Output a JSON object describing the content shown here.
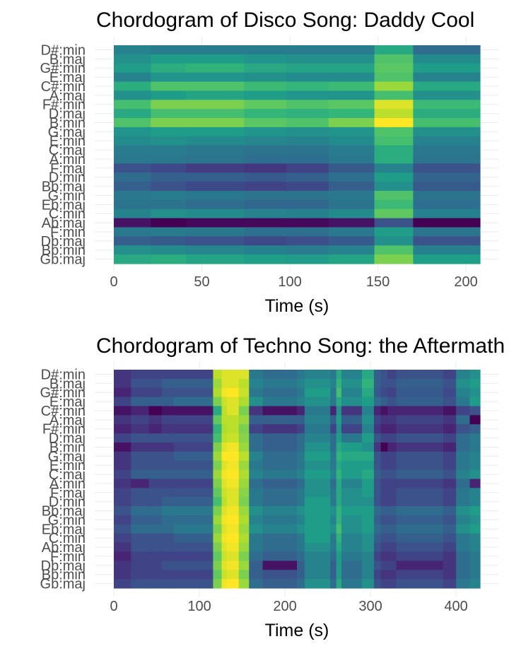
{
  "chart_data": [
    {
      "type": "heatmap",
      "title": "Chordogram of Disco Song: Daddy Cool",
      "xlabel": "Time (s)",
      "ylabel": "",
      "xlim": [
        0,
        208
      ],
      "xticks": [
        0,
        50,
        100,
        150,
        200
      ],
      "categories": [
        "D#:min",
        "B:maj",
        "G#:min",
        "E:maj",
        "C#:min",
        "A:maj",
        "F#:min",
        "D:maj",
        "B:min",
        "G:maj",
        "E:min",
        "C:maj",
        "A:min",
        "F:maj",
        "D:min",
        "Bb:maj",
        "G:min",
        "Eb:maj",
        "C:min",
        "Ab:maj",
        "F:min",
        "Db:maj",
        "Bb:min",
        "Gb:maj"
      ],
      "time_bins": [
        0,
        21,
        41,
        74,
        98,
        122,
        148,
        170,
        208
      ],
      "values": [
        [
          0.45,
          0.42,
          0.42,
          0.42,
          0.42,
          0.42,
          0.6,
          0.35
        ],
        [
          0.5,
          0.55,
          0.55,
          0.52,
          0.5,
          0.5,
          0.72,
          0.48
        ],
        [
          0.55,
          0.62,
          0.65,
          0.6,
          0.58,
          0.58,
          0.74,
          0.55
        ],
        [
          0.45,
          0.52,
          0.52,
          0.5,
          0.48,
          0.48,
          0.72,
          0.45
        ],
        [
          0.62,
          0.72,
          0.72,
          0.68,
          0.66,
          0.68,
          0.85,
          0.6
        ],
        [
          0.5,
          0.55,
          0.58,
          0.55,
          0.52,
          0.52,
          0.7,
          0.5
        ],
        [
          0.7,
          0.8,
          0.8,
          0.75,
          0.72,
          0.74,
          0.95,
          0.68
        ],
        [
          0.6,
          0.7,
          0.7,
          0.66,
          0.64,
          0.66,
          0.9,
          0.62
        ],
        [
          0.72,
          0.8,
          0.8,
          0.74,
          0.72,
          0.8,
          1.0,
          0.7
        ],
        [
          0.52,
          0.55,
          0.55,
          0.52,
          0.5,
          0.52,
          0.72,
          0.5
        ],
        [
          0.48,
          0.5,
          0.48,
          0.46,
          0.45,
          0.48,
          0.7,
          0.45
        ],
        [
          0.42,
          0.42,
          0.4,
          0.38,
          0.38,
          0.42,
          0.62,
          0.4
        ],
        [
          0.4,
          0.4,
          0.38,
          0.36,
          0.36,
          0.4,
          0.62,
          0.38
        ],
        [
          0.25,
          0.22,
          0.18,
          0.16,
          0.2,
          0.28,
          0.45,
          0.25
        ],
        [
          0.35,
          0.3,
          0.3,
          0.28,
          0.3,
          0.36,
          0.55,
          0.32
        ],
        [
          0.3,
          0.25,
          0.22,
          0.2,
          0.22,
          0.3,
          0.5,
          0.28
        ],
        [
          0.4,
          0.42,
          0.4,
          0.38,
          0.38,
          0.4,
          0.72,
          0.38
        ],
        [
          0.38,
          0.38,
          0.35,
          0.33,
          0.33,
          0.38,
          0.68,
          0.36
        ],
        [
          0.45,
          0.5,
          0.48,
          0.45,
          0.44,
          0.48,
          0.75,
          0.44
        ],
        [
          0.05,
          0.0,
          0.02,
          0.02,
          0.02,
          0.05,
          0.25,
          0.0
        ],
        [
          0.4,
          0.42,
          0.4,
          0.36,
          0.36,
          0.4,
          0.55,
          0.38
        ],
        [
          0.3,
          0.28,
          0.25,
          0.22,
          0.24,
          0.28,
          0.5,
          0.26
        ],
        [
          0.5,
          0.48,
          0.46,
          0.44,
          0.42,
          0.45,
          0.72,
          0.44
        ],
        [
          0.6,
          0.62,
          0.58,
          0.56,
          0.55,
          0.58,
          0.8,
          0.56
        ]
      ],
      "colormap": "viridis",
      "grid": true,
      "legend": "none"
    },
    {
      "type": "heatmap",
      "title": "Chordogram of Techno Song: the Aftermath",
      "xlabel": "Time (s)",
      "ylabel": "",
      "xlim": [
        0,
        428
      ],
      "xticks": [
        0,
        100,
        200,
        300,
        400
      ],
      "categories": [
        "D#:min",
        "B:maj",
        "G#:min",
        "E:maj",
        "C#:min",
        "A:maj",
        "F#:min",
        "D:maj",
        "B:min",
        "G:maj",
        "E:min",
        "C:maj",
        "A:min",
        "F:maj",
        "D:min",
        "Bb:maj",
        "G:min",
        "Eb:maj",
        "C:min",
        "Ab:maj",
        "F:min",
        "Db:maj",
        "Bb:min",
        "Gb:maj"
      ],
      "time_bins": [
        0,
        20,
        41,
        56,
        70,
        116,
        126,
        132,
        146,
        158,
        174,
        214,
        223,
        253,
        260,
        266,
        290,
        304,
        312,
        320,
        330,
        385,
        400,
        416,
        428
      ],
      "values": [
        [
          0.15,
          0.2,
          0.2,
          0.2,
          0.2,
          0.9,
          0.95,
          0.95,
          0.95,
          0.4,
          0.35,
          0.4,
          0.45,
          0.4,
          0.6,
          0.45,
          0.6,
          0.3,
          0.25,
          0.2,
          0.25,
          0.2,
          0.45,
          0.5
        ],
        [
          0.15,
          0.25,
          0.25,
          0.3,
          0.3,
          0.85,
          0.95,
          0.95,
          0.9,
          0.45,
          0.4,
          0.45,
          0.5,
          0.45,
          0.65,
          0.5,
          0.65,
          0.3,
          0.25,
          0.25,
          0.3,
          0.25,
          0.5,
          0.55
        ],
        [
          0.1,
          0.2,
          0.2,
          0.25,
          0.25,
          0.88,
          0.98,
          1.0,
          0.92,
          0.4,
          0.35,
          0.4,
          0.55,
          0.4,
          0.7,
          0.45,
          0.6,
          0.28,
          0.22,
          0.2,
          0.28,
          0.22,
          0.45,
          0.5
        ],
        [
          0.2,
          0.3,
          0.3,
          0.3,
          0.35,
          0.8,
          0.92,
          0.95,
          0.88,
          0.5,
          0.4,
          0.45,
          0.5,
          0.4,
          0.6,
          0.5,
          0.55,
          0.35,
          0.3,
          0.25,
          0.3,
          0.25,
          0.4,
          0.55
        ],
        [
          0.05,
          0.1,
          0.0,
          0.05,
          0.05,
          0.6,
          0.9,
          0.95,
          0.8,
          0.15,
          0.05,
          0.1,
          0.4,
          0.1,
          0.5,
          0.15,
          0.45,
          0.1,
          0.05,
          0.1,
          0.1,
          0.05,
          0.2,
          0.25
        ],
        [
          0.15,
          0.2,
          0.15,
          0.2,
          0.2,
          0.75,
          0.9,
          0.9,
          0.85,
          0.3,
          0.3,
          0.3,
          0.45,
          0.3,
          0.55,
          0.3,
          0.5,
          0.2,
          0.15,
          0.15,
          0.2,
          0.15,
          0.35,
          0.0
        ],
        [
          0.1,
          0.15,
          0.1,
          0.15,
          0.15,
          0.65,
          0.88,
          0.9,
          0.8,
          0.2,
          0.15,
          0.2,
          0.4,
          0.2,
          0.5,
          0.2,
          0.45,
          0.15,
          0.1,
          0.1,
          0.15,
          0.1,
          0.25,
          0.3
        ],
        [
          0.2,
          0.25,
          0.25,
          0.25,
          0.25,
          0.7,
          0.9,
          0.92,
          0.82,
          0.35,
          0.3,
          0.35,
          0.45,
          0.35,
          0.55,
          0.4,
          0.55,
          0.25,
          0.2,
          0.2,
          0.25,
          0.2,
          0.35,
          0.4
        ],
        [
          0.05,
          0.15,
          0.15,
          0.15,
          0.2,
          0.8,
          0.95,
          0.98,
          0.85,
          0.35,
          0.3,
          0.35,
          0.5,
          0.35,
          0.6,
          0.55,
          0.5,
          0.15,
          0.0,
          0.1,
          0.15,
          0.1,
          0.35,
          0.4
        ],
        [
          0.15,
          0.25,
          0.25,
          0.25,
          0.3,
          0.85,
          1.0,
          1.0,
          0.9,
          0.45,
          0.35,
          0.4,
          0.55,
          0.4,
          0.65,
          0.6,
          0.6,
          0.25,
          0.2,
          0.2,
          0.25,
          0.2,
          0.4,
          0.45
        ],
        [
          0.15,
          0.25,
          0.25,
          0.25,
          0.25,
          0.8,
          0.95,
          0.98,
          0.85,
          0.4,
          0.35,
          0.4,
          0.5,
          0.4,
          0.6,
          0.55,
          0.55,
          0.25,
          0.2,
          0.2,
          0.25,
          0.2,
          0.4,
          0.45
        ],
        [
          0.2,
          0.3,
          0.3,
          0.3,
          0.3,
          0.85,
          0.98,
          1.0,
          0.88,
          0.45,
          0.4,
          0.45,
          0.55,
          0.45,
          0.65,
          0.55,
          0.6,
          0.3,
          0.25,
          0.25,
          0.3,
          0.25,
          0.45,
          0.5
        ],
        [
          0.15,
          0.1,
          0.2,
          0.2,
          0.2,
          0.8,
          0.95,
          0.98,
          0.85,
          0.35,
          0.3,
          0.35,
          0.5,
          0.35,
          0.6,
          0.45,
          0.55,
          0.25,
          0.2,
          0.2,
          0.2,
          0.15,
          0.35,
          0.1
        ],
        [
          0.2,
          0.25,
          0.25,
          0.25,
          0.25,
          0.75,
          0.92,
          0.95,
          0.82,
          0.4,
          0.35,
          0.4,
          0.5,
          0.4,
          0.6,
          0.5,
          0.55,
          0.25,
          0.2,
          0.2,
          0.25,
          0.2,
          0.4,
          0.45
        ],
        [
          0.2,
          0.25,
          0.25,
          0.3,
          0.3,
          0.7,
          0.9,
          0.95,
          0.8,
          0.4,
          0.35,
          0.4,
          0.55,
          0.4,
          0.6,
          0.5,
          0.5,
          0.25,
          0.2,
          0.2,
          0.25,
          0.2,
          0.4,
          0.45
        ],
        [
          0.25,
          0.35,
          0.35,
          0.4,
          0.4,
          0.8,
          0.95,
          0.98,
          0.85,
          0.5,
          0.45,
          0.5,
          0.55,
          0.5,
          0.65,
          0.55,
          0.55,
          0.35,
          0.3,
          0.3,
          0.35,
          0.3,
          0.5,
          0.55
        ],
        [
          0.2,
          0.3,
          0.3,
          0.35,
          0.35,
          0.85,
          0.98,
          1.0,
          0.88,
          0.45,
          0.4,
          0.45,
          0.55,
          0.45,
          0.65,
          0.5,
          0.55,
          0.3,
          0.25,
          0.25,
          0.3,
          0.25,
          0.45,
          0.5
        ],
        [
          0.25,
          0.35,
          0.35,
          0.35,
          0.4,
          0.8,
          0.95,
          0.98,
          0.85,
          0.5,
          0.45,
          0.5,
          0.55,
          0.5,
          0.7,
          0.5,
          0.55,
          0.35,
          0.3,
          0.3,
          0.35,
          0.3,
          0.5,
          0.55
        ],
        [
          0.2,
          0.25,
          0.25,
          0.25,
          0.3,
          0.85,
          0.98,
          1.0,
          0.88,
          0.4,
          0.35,
          0.4,
          0.55,
          0.4,
          0.65,
          0.45,
          0.5,
          0.3,
          0.25,
          0.25,
          0.3,
          0.25,
          0.4,
          0.45
        ],
        [
          0.15,
          0.25,
          0.25,
          0.25,
          0.25,
          0.8,
          0.95,
          0.98,
          0.85,
          0.4,
          0.35,
          0.4,
          0.5,
          0.4,
          0.6,
          0.45,
          0.5,
          0.25,
          0.2,
          0.2,
          0.25,
          0.2,
          0.4,
          0.45
        ],
        [
          0.1,
          0.2,
          0.2,
          0.2,
          0.2,
          0.75,
          0.92,
          0.95,
          0.8,
          0.35,
          0.3,
          0.35,
          0.45,
          0.35,
          0.55,
          0.4,
          0.45,
          0.2,
          0.15,
          0.15,
          0.2,
          0.15,
          0.35,
          0.4
        ],
        [
          0.15,
          0.2,
          0.2,
          0.25,
          0.25,
          0.8,
          0.95,
          0.98,
          0.85,
          0.3,
          0.05,
          0.3,
          0.45,
          0.3,
          0.55,
          0.35,
          0.45,
          0.25,
          0.2,
          0.2,
          0.1,
          0.15,
          0.35,
          0.4
        ],
        [
          0.15,
          0.2,
          0.2,
          0.2,
          0.2,
          0.75,
          0.92,
          0.95,
          0.8,
          0.3,
          0.25,
          0.3,
          0.45,
          0.3,
          0.55,
          0.35,
          0.45,
          0.2,
          0.15,
          0.15,
          0.2,
          0.15,
          0.35,
          0.4
        ],
        [
          0.2,
          0.25,
          0.25,
          0.25,
          0.25,
          0.8,
          0.98,
          1.0,
          0.85,
          0.35,
          0.3,
          0.35,
          0.5,
          0.35,
          0.6,
          0.4,
          0.5,
          0.25,
          0.2,
          0.2,
          0.25,
          0.2,
          0.4,
          0.45
        ]
      ],
      "colormap": "viridis",
      "grid": true,
      "legend": "none"
    }
  ]
}
